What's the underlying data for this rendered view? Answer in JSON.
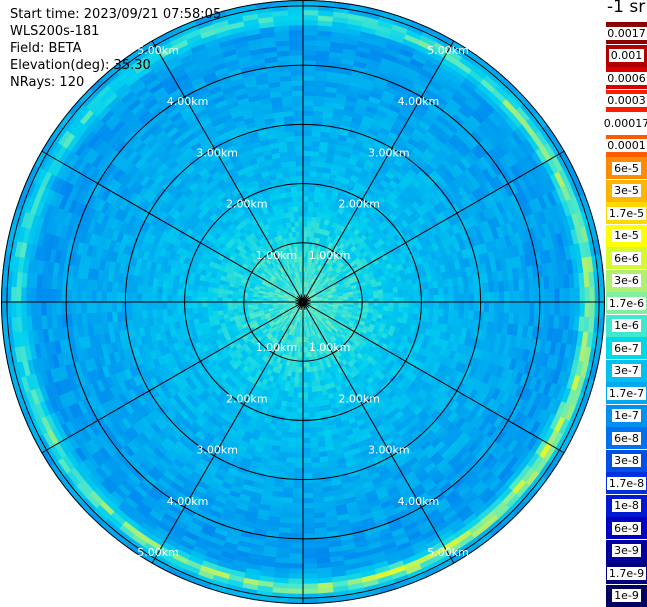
{
  "info": {
    "start_time": "Start time: 2023/09/21 07:58:05",
    "device": "WLS200s-181",
    "field": "Field: BETA",
    "elevation": "Elevation(deg): 35.30",
    "nrays": "NRays: 120"
  },
  "legend": {
    "unit_label": "-1 sr",
    "entries": [
      {
        "label": "0.0017",
        "color": "#8b0000"
      },
      {
        "label": "0.001",
        "color": "#b20000"
      },
      {
        "label": "0.0006",
        "color": "#d80000"
      },
      {
        "label": "0.0003",
        "color": "#ff1a00"
      },
      {
        "label": "0.00017",
        "color": "#ffffff"
      },
      {
        "label": "0.0001",
        "color": "#ff5a00"
      },
      {
        "label": "6e-5",
        "color": "#ff8c00"
      },
      {
        "label": "3e-5",
        "color": "#ffb400"
      },
      {
        "label": "1.7e-5",
        "color": "#ffd800"
      },
      {
        "label": "1e-5",
        "color": "#ffff00"
      },
      {
        "label": "6e-6",
        "color": "#d8f830"
      },
      {
        "label": "3e-6",
        "color": "#b0f070"
      },
      {
        "label": "1.7e-6",
        "color": "#80f0a0"
      },
      {
        "label": "1e-6",
        "color": "#40e8d0"
      },
      {
        "label": "6e-7",
        "color": "#00d8e8"
      },
      {
        "label": "3e-7",
        "color": "#00c0f0"
      },
      {
        "label": "1.7e-7",
        "color": "#00a8f0"
      },
      {
        "label": "1e-7",
        "color": "#0090f0"
      },
      {
        "label": "6e-8",
        "color": "#0070f0"
      },
      {
        "label": "3e-8",
        "color": "#0050e8"
      },
      {
        "label": "1.7e-8",
        "color": "#0030e0"
      },
      {
        "label": "1e-8",
        "color": "#0018d0"
      },
      {
        "label": "6e-9",
        "color": "#0000c0"
      },
      {
        "label": "3e-9",
        "color": "#0000a0"
      },
      {
        "label": "1.7e-9",
        "color": "#000080"
      },
      {
        "label": "1e-9",
        "color": "#000060"
      }
    ]
  },
  "chart_data": {
    "type": "heatmap",
    "projection": "polar (PPI scan)",
    "range_ring_labels": [
      "1.00km",
      "2.00km",
      "3.00km",
      "4.00km",
      "5.00km"
    ],
    "range_rings_km": [
      1,
      2,
      3,
      4,
      5
    ],
    "max_range_km": 5.1,
    "spoke_step_deg": 30,
    "n_rays": 120,
    "color_scale": "log",
    "value_range": [
      1e-09,
      0.0017
    ],
    "approx_field": [
      {
        "range_km": [
          0.0,
          1.0
        ],
        "beta": "3e-6 to 1e-6"
      },
      {
        "range_km": [
          1.0,
          2.0
        ],
        "beta": "1e-6 to 6e-7"
      },
      {
        "range_km": [
          2.0,
          4.6
        ],
        "beta": "3e-7 to 3e-8"
      },
      {
        "range_km": [
          4.6,
          5.0
        ],
        "beta": "1e-5 to 1e-4 (bright ring)"
      }
    ]
  }
}
